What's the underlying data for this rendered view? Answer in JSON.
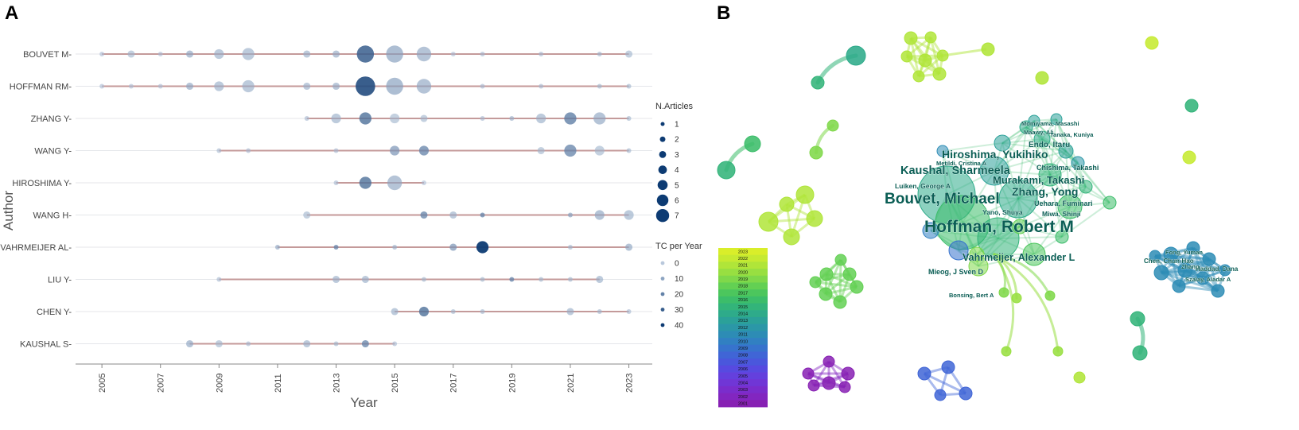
{
  "panel_a_label": "A",
  "panel_b_label": "B",
  "chart_data": [
    {
      "type": "scatter",
      "subtype": "timeline bubble chart",
      "xlabel": "Year",
      "ylabel": "Author",
      "xlim": [
        2004.1,
        2023.8
      ],
      "x_ticks": [
        "2005",
        "2007",
        "2009",
        "2011",
        "2013",
        "2015",
        "2017",
        "2019",
        "2021",
        "2023"
      ],
      "authors": [
        "BOUVET M",
        "HOFFMAN RM",
        "ZHANG Y",
        "WANG Y",
        "HIROSHIMA Y",
        "WANG H",
        "VAHRMEIJER AL",
        "LIU Y",
        "CHEN Y",
        "KAUSHAL S"
      ],
      "timeline_spans": [
        [
          2005,
          2023
        ],
        [
          2005,
          2023
        ],
        [
          2012,
          2023
        ],
        [
          2009,
          2023
        ],
        [
          2013,
          2016
        ],
        [
          2012,
          2023
        ],
        [
          2011,
          2023
        ],
        [
          2009,
          2022
        ],
        [
          2015,
          2023
        ],
        [
          2008,
          2015
        ]
      ],
      "points": [
        [
          [
            2005,
            1,
            4
          ],
          [
            2006,
            2,
            6
          ],
          [
            2007,
            1,
            4
          ],
          [
            2008,
            2,
            10
          ],
          [
            2009,
            3,
            8
          ],
          [
            2010,
            4,
            8
          ],
          [
            2012,
            2,
            8
          ],
          [
            2013,
            2,
            9
          ],
          [
            2014,
            6,
            30
          ],
          [
            2015,
            6,
            12
          ],
          [
            2016,
            5,
            10
          ],
          [
            2017,
            1,
            4
          ],
          [
            2018,
            1,
            5
          ],
          [
            2020,
            1,
            5
          ],
          [
            2022,
            1,
            6
          ],
          [
            2023,
            2,
            6
          ]
        ],
        [
          [
            2005,
            1,
            4
          ],
          [
            2006,
            1,
            4
          ],
          [
            2007,
            1,
            4
          ],
          [
            2008,
            2,
            10
          ],
          [
            2009,
            3,
            8
          ],
          [
            2010,
            4,
            8
          ],
          [
            2012,
            2,
            8
          ],
          [
            2013,
            2,
            9
          ],
          [
            2014,
            7,
            35
          ],
          [
            2015,
            6,
            12
          ],
          [
            2016,
            5,
            10
          ],
          [
            2018,
            1,
            5
          ],
          [
            2020,
            1,
            5
          ],
          [
            2022,
            1,
            6
          ],
          [
            2023,
            1,
            6
          ]
        ],
        [
          [
            2012,
            1,
            5
          ],
          [
            2013,
            3,
            8
          ],
          [
            2014,
            4,
            25
          ],
          [
            2015,
            3,
            6
          ],
          [
            2016,
            2,
            6
          ],
          [
            2018,
            1,
            5
          ],
          [
            2019,
            1,
            8
          ],
          [
            2020,
            3,
            8
          ],
          [
            2021,
            4,
            22
          ],
          [
            2022,
            4,
            10
          ],
          [
            2023,
            1,
            6
          ]
        ],
        [
          [
            2009,
            1,
            5
          ],
          [
            2010,
            1,
            5
          ],
          [
            2013,
            1,
            5
          ],
          [
            2015,
            3,
            15
          ],
          [
            2016,
            3,
            20
          ],
          [
            2020,
            2,
            6
          ],
          [
            2021,
            4,
            20
          ],
          [
            2022,
            3,
            6
          ],
          [
            2023,
            1,
            6
          ]
        ],
        [
          [
            2013,
            1,
            5
          ],
          [
            2014,
            4,
            25
          ],
          [
            2015,
            5,
            10
          ],
          [
            2016,
            1,
            4
          ]
        ],
        [
          [
            2012,
            2,
            6
          ],
          [
            2016,
            2,
            20
          ],
          [
            2017,
            2,
            8
          ],
          [
            2018,
            1,
            20
          ],
          [
            2021,
            1,
            12
          ],
          [
            2022,
            3,
            10
          ],
          [
            2023,
            3,
            8
          ]
        ],
        [
          [
            2011,
            1,
            10
          ],
          [
            2013,
            1,
            20
          ],
          [
            2015,
            1,
            8
          ],
          [
            2017,
            2,
            15
          ],
          [
            2018,
            4,
            40
          ],
          [
            2021,
            1,
            6
          ],
          [
            2023,
            2,
            10
          ]
        ],
        [
          [
            2009,
            1,
            5
          ],
          [
            2013,
            2,
            8
          ],
          [
            2014,
            2,
            8
          ],
          [
            2016,
            1,
            6
          ],
          [
            2018,
            1,
            6
          ],
          [
            2019,
            1,
            20
          ],
          [
            2020,
            1,
            6
          ],
          [
            2021,
            1,
            6
          ],
          [
            2022,
            2,
            8
          ]
        ],
        [
          [
            2015,
            2,
            8
          ],
          [
            2016,
            3,
            25
          ],
          [
            2017,
            1,
            6
          ],
          [
            2018,
            1,
            6
          ],
          [
            2021,
            2,
            8
          ],
          [
            2022,
            1,
            6
          ],
          [
            2023,
            1,
            5
          ]
        ],
        [
          [
            2008,
            2,
            10
          ],
          [
            2009,
            2,
            6
          ],
          [
            2010,
            1,
            5
          ],
          [
            2012,
            2,
            8
          ],
          [
            2013,
            1,
            6
          ],
          [
            2014,
            2,
            20
          ],
          [
            2015,
            1,
            5
          ]
        ]
      ],
      "point_format": "[year, n_articles, tc_per_year]",
      "legend": {
        "size_title": "N.Articles",
        "size_labels": [
          "1",
          "2",
          "3",
          "4",
          "5",
          "6",
          "7"
        ],
        "color_title": "TC per Year",
        "color_labels": [
          "0",
          "10",
          "20",
          "30",
          "40"
        ]
      },
      "colors": {
        "line": "#c49a9a",
        "low": "#b9c8dc",
        "high": "#0d3b73",
        "grid": "#e4e6ea"
      }
    },
    {
      "type": "network",
      "subtype": "co-authorship overlay map",
      "labels": [
        "Momiyama, Masashi",
        "Maawy, Ali",
        "Tanaka, Kuniya",
        "Endo, Itaru",
        "Hiroshima, Yukihiko",
        "Metildi, Cristina A",
        "Chishima, Takashi",
        "Kaushal, Sharmeela",
        "Murakami, Takashi",
        "Luiken, George A",
        "Zhang, Yong",
        "Bouvet, Michael",
        "Uehara, Fuminari",
        "Yano, Shuya",
        "Miwa, Shinji",
        "Hoffman, Robert M",
        "Vahrmeijer, Alexander L",
        "Mieog, J Sven D",
        "Bonsing, Bert A",
        "Fong, Yuman",
        "Chen, Chun-Hao",
        "Zhang",
        "Haddad, Dana",
        "Szalay, Aladar A"
      ],
      "color_scale": {
        "years": [
          "2023",
          "2022",
          "2021",
          "2020",
          "2019",
          "2018",
          "2017",
          "2016",
          "2015",
          "2014",
          "2013",
          "2012",
          "2011",
          "2010",
          "2009",
          "2008",
          "2007",
          "2006",
          "2005",
          "2004",
          "2003",
          "2002",
          "2001"
        ],
        "colors": [
          "#d9ee2a",
          "#c6ea31",
          "#b0e539",
          "#98df41",
          "#7fd84a",
          "#63d053",
          "#4cc65d",
          "#3cbd6a",
          "#33b47a",
          "#2eab8a",
          "#2ba199",
          "#2b97a7",
          "#2d8cb5",
          "#3180c2",
          "#3773cd",
          "#4065d6",
          "#4a57dc",
          "#574ae0",
          "#6440dd",
          "#7036d6",
          "#7a2dcc",
          "#8226c0",
          "#8720b3"
        ]
      }
    }
  ]
}
